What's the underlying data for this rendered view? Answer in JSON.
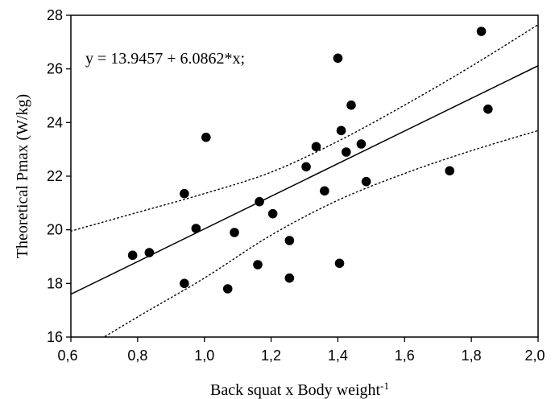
{
  "chart_data": {
    "type": "scatter",
    "title": "",
    "xlabel": "Back squat x Body weight",
    "xlabel_sup": "-1",
    "ylabel": "Theoretical Pmax (W/kg)",
    "xlim": [
      0.6,
      2.0
    ],
    "ylim": [
      16,
      28
    ],
    "x_ticks": [
      0.6,
      0.8,
      1.0,
      1.2,
      1.4,
      1.6,
      1.8,
      2.0
    ],
    "x_tick_labels": [
      "0,6",
      "0,8",
      "1,0",
      "1,2",
      "1,4",
      "1,6",
      "1,8",
      "2,0"
    ],
    "y_ticks": [
      16,
      18,
      20,
      22,
      24,
      26,
      28
    ],
    "y_tick_labels": [
      "16",
      "18",
      "20",
      "22",
      "24",
      "26",
      "28"
    ],
    "grid": false,
    "annotation": "y = 13.9457 + 6.0862*x;",
    "regression": {
      "intercept": 13.9457,
      "slope": 6.0862
    },
    "confidence_band": {
      "x": [
        0.6,
        0.8,
        1.0,
        1.2,
        1.4,
        1.6,
        1.8,
        2.0
      ],
      "upper": [
        19.95,
        20.65,
        21.35,
        22.15,
        23.3,
        24.65,
        26.1,
        27.65
      ],
      "lower": [
        15.25,
        16.75,
        18.2,
        19.8,
        21.1,
        22.1,
        22.95,
        23.7
      ]
    },
    "points": [
      {
        "x": 0.785,
        "y": 19.05
      },
      {
        "x": 0.835,
        "y": 19.15
      },
      {
        "x": 0.94,
        "y": 18.0
      },
      {
        "x": 0.94,
        "y": 21.35
      },
      {
        "x": 0.975,
        "y": 20.05
      },
      {
        "x": 1.005,
        "y": 23.45
      },
      {
        "x": 1.07,
        "y": 17.8
      },
      {
        "x": 1.09,
        "y": 19.9
      },
      {
        "x": 1.16,
        "y": 18.7
      },
      {
        "x": 1.165,
        "y": 21.05
      },
      {
        "x": 1.205,
        "y": 20.6
      },
      {
        "x": 1.255,
        "y": 19.6
      },
      {
        "x": 1.255,
        "y": 18.2
      },
      {
        "x": 1.305,
        "y": 22.35
      },
      {
        "x": 1.335,
        "y": 23.1
      },
      {
        "x": 1.36,
        "y": 21.45
      },
      {
        "x": 1.4,
        "y": 26.4
      },
      {
        "x": 1.405,
        "y": 18.75
      },
      {
        "x": 1.41,
        "y": 23.7
      },
      {
        "x": 1.425,
        "y": 22.9
      },
      {
        "x": 1.44,
        "y": 24.65
      },
      {
        "x": 1.47,
        "y": 23.2
      },
      {
        "x": 1.485,
        "y": 21.8
      },
      {
        "x": 1.735,
        "y": 22.2
      },
      {
        "x": 1.83,
        "y": 27.4
      },
      {
        "x": 1.85,
        "y": 24.5
      }
    ]
  }
}
